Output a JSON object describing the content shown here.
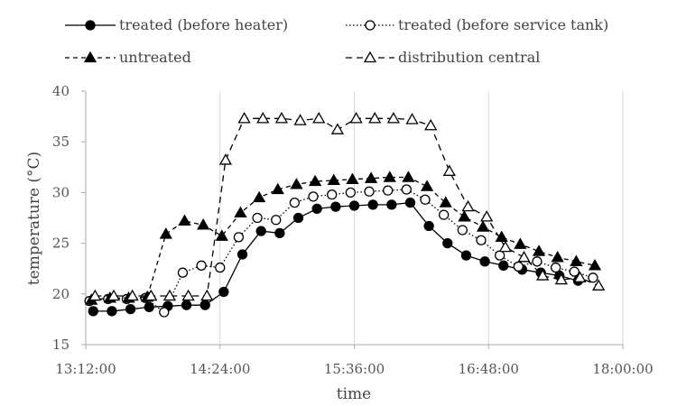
{
  "chart_data": {
    "type": "line",
    "xlabel": "time",
    "ylabel": "temperature (°C)",
    "ylim": [
      15,
      40
    ],
    "yticks": [
      15,
      20,
      25,
      30,
      35,
      40
    ],
    "xlim": [
      "13:12:00",
      "18:00:00"
    ],
    "xticks": [
      "13:12:00",
      "14:24:00",
      "15:36:00",
      "16:48:00",
      "18:00:00"
    ],
    "grid": "vertical",
    "legend_position": "top",
    "colors": {
      "line": "#000000",
      "axis": "#aaaaaa",
      "grid": "#d9d9d9"
    },
    "series": [
      {
        "name": "treated (before heater)",
        "marker": "filled-circle",
        "dash": "solid",
        "x": [
          "13:16:00",
          "13:26:00",
          "13:36:00",
          "13:46:00",
          "13:56:00",
          "14:06:00",
          "14:16:00",
          "14:26:00",
          "14:36:00",
          "14:46:00",
          "14:56:00",
          "15:06:00",
          "15:16:00",
          "15:26:00",
          "15:36:00",
          "15:46:00",
          "15:56:00",
          "16:06:00",
          "16:16:00",
          "16:26:00",
          "16:36:00",
          "16:46:00",
          "16:56:00",
          "17:06:00",
          "17:16:00",
          "17:26:00",
          "17:36:00"
        ],
        "y": [
          18.3,
          18.3,
          18.5,
          18.7,
          18.8,
          18.9,
          18.9,
          20.2,
          23.9,
          26.2,
          26.0,
          27.5,
          28.4,
          28.6,
          28.7,
          28.8,
          28.8,
          29.0,
          26.7,
          25.0,
          23.8,
          23.2,
          22.8,
          22.4,
          22.1,
          21.8,
          21.3
        ]
      },
      {
        "name": "treated (before service tank)",
        "marker": "open-circle",
        "dash": "dotted",
        "x": [
          "13:14:00",
          "13:24:00",
          "13:34:00",
          "13:44:00",
          "13:54:00",
          "14:04:00",
          "14:14:00",
          "14:24:00",
          "14:34:00",
          "14:44:00",
          "14:54:00",
          "15:04:00",
          "15:14:00",
          "15:24:00",
          "15:34:00",
          "15:44:00",
          "15:54:00",
          "16:04:00",
          "16:14:00",
          "16:24:00",
          "16:34:00",
          "16:44:00",
          "16:54:00",
          "17:04:00",
          "17:14:00",
          "17:24:00",
          "17:34:00",
          "17:44:00"
        ],
        "y": [
          19.3,
          19.5,
          19.5,
          19.6,
          18.2,
          22.1,
          22.8,
          22.6,
          25.6,
          27.5,
          27.3,
          29.0,
          29.6,
          29.8,
          30.0,
          30.1,
          30.2,
          30.3,
          29.3,
          27.8,
          26.3,
          25.3,
          23.8,
          22.7,
          23.2,
          22.6,
          22.2,
          21.6
        ]
      },
      {
        "name": "untreated",
        "marker": "filled-triangle",
        "dash": "dashed",
        "x": [
          "13:15:00",
          "13:25:00",
          "13:35:00",
          "13:45:00",
          "13:55:00",
          "14:05:00",
          "14:15:00",
          "14:25:00",
          "14:35:00",
          "14:45:00",
          "14:55:00",
          "15:05:00",
          "15:15:00",
          "15:25:00",
          "15:35:00",
          "15:45:00",
          "15:55:00",
          "16:05:00",
          "16:15:00",
          "16:25:00",
          "16:35:00",
          "16:45:00",
          "16:55:00",
          "17:05:00",
          "17:15:00",
          "17:25:00",
          "17:35:00",
          "17:45:00"
        ],
        "y": [
          19.4,
          19.6,
          19.6,
          19.7,
          25.9,
          27.2,
          26.8,
          25.7,
          28.0,
          29.5,
          30.3,
          30.8,
          31.1,
          31.2,
          31.3,
          31.4,
          31.5,
          31.5,
          30.6,
          29.0,
          27.6,
          26.6,
          25.6,
          24.9,
          24.2,
          23.6,
          23.2,
          22.8
        ]
      },
      {
        "name": "distribution central",
        "marker": "open-triangle",
        "dash": "long-dash",
        "x": [
          "13:17:00",
          "13:27:00",
          "13:37:00",
          "13:47:00",
          "13:57:00",
          "14:07:00",
          "14:17:00",
          "14:27:00",
          "14:37:00",
          "14:47:00",
          "14:57:00",
          "15:07:00",
          "15:17:00",
          "15:27:00",
          "15:37:00",
          "15:47:00",
          "15:57:00",
          "16:07:00",
          "16:17:00",
          "16:27:00",
          "16:37:00",
          "16:47:00",
          "16:57:00",
          "17:07:00",
          "17:17:00",
          "17:27:00",
          "17:37:00",
          "17:47:00"
        ],
        "y": [
          19.8,
          19.8,
          19.8,
          19.8,
          19.8,
          19.8,
          19.8,
          33.2,
          37.3,
          37.3,
          37.3,
          37.1,
          37.3,
          36.2,
          37.3,
          37.3,
          37.3,
          37.2,
          36.6,
          32.1,
          28.6,
          27.6,
          24.6,
          23.6,
          21.8,
          21.4,
          21.6,
          20.8
        ]
      }
    ]
  }
}
